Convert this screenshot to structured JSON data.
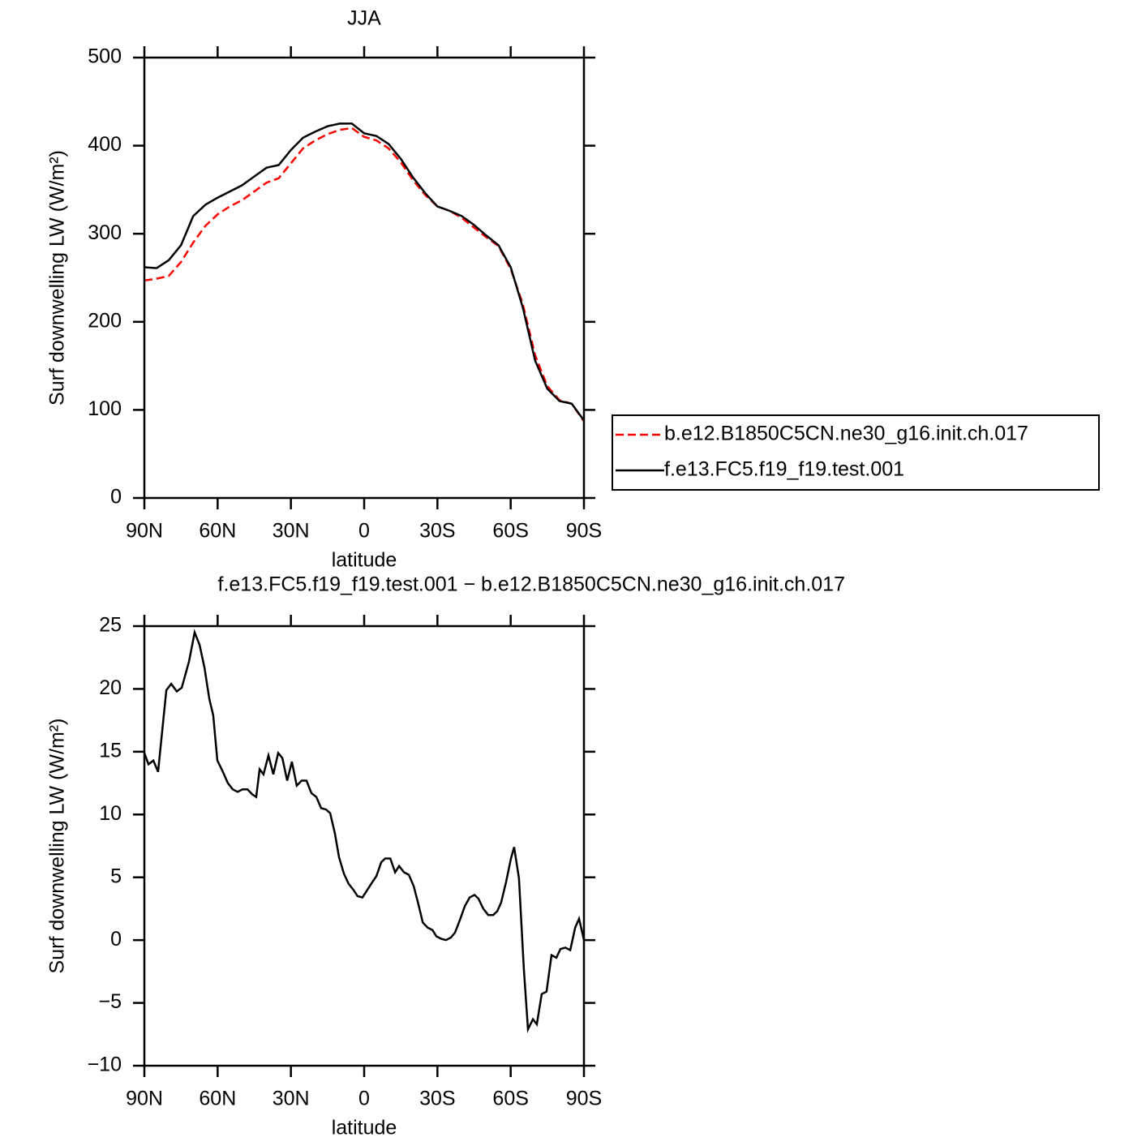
{
  "chart_data": [
    {
      "type": "line",
      "title": "JJA",
      "xlabel": "latitude",
      "ylabel": "Surf downwelling LW (W/m²)",
      "x": [
        90,
        85,
        80,
        75,
        70,
        65,
        60,
        55,
        50,
        45,
        40,
        35,
        30,
        25,
        20,
        15,
        10,
        5,
        0,
        -5,
        -10,
        -15,
        -20,
        -25,
        -30,
        -35,
        -40,
        -45,
        -50,
        -55,
        -60,
        -65,
        -70,
        -75,
        -80,
        -85,
        -90
      ],
      "series": [
        {
          "name": "b.e12.B1850C5CN.ne30_g16.init.ch.017",
          "color": "#ff0000",
          "line_style": "dashed",
          "values": [
            247,
            249,
            252,
            268,
            290,
            309,
            322,
            331,
            338,
            348,
            358,
            363,
            380,
            397,
            406,
            413,
            418,
            420,
            410,
            406,
            397,
            381,
            361,
            344,
            331,
            326,
            318,
            307,
            296,
            286,
            260,
            220,
            162,
            127,
            111,
            107,
            87
          ]
        },
        {
          "name": "f.e13.FC5.f19_f19.test.001",
          "color": "#000000",
          "line_style": "solid",
          "values": [
            262,
            261,
            270,
            287,
            320,
            333,
            341,
            348,
            355,
            365,
            375,
            378,
            395,
            409,
            416,
            422,
            425,
            425,
            414,
            411,
            402,
            385,
            364,
            346,
            331,
            326,
            320,
            310,
            298,
            287,
            262,
            216,
            156,
            124,
            110,
            107,
            88
          ]
        }
      ],
      "xlim": [
        90,
        -90
      ],
      "xticks": [
        {
          "value": 90,
          "label": "90N"
        },
        {
          "value": 60,
          "label": "60N"
        },
        {
          "value": 30,
          "label": "30N"
        },
        0,
        {
          "value": -30,
          "label": "30S"
        },
        {
          "value": -60,
          "label": "60S"
        },
        {
          "value": -90,
          "label": "90S"
        }
      ],
      "ylim": [
        0,
        500
      ],
      "yticks": [
        0,
        100,
        200,
        300,
        400,
        500
      ],
      "legend": "right"
    },
    {
      "type": "line",
      "title": "f.e13.FC5.f19_f19.test.001 − b.e12.B1850C5CN.ne30_g16.init.ch.017",
      "xlabel": "latitude",
      "ylabel": "Surf downwelling LW (W/m²)",
      "x": [
        90,
        88.3,
        86.3,
        84.4,
        81,
        79,
        76.7,
        74.7,
        71.7,
        69.4,
        67.4,
        65.4,
        63.4,
        61.8,
        60.1,
        58.1,
        55.8,
        53.8,
        51.8,
        49.8,
        47.8,
        45.8,
        44.2,
        42.8,
        41.2,
        39.2,
        37.2,
        35.2,
        33.5,
        31.5,
        29.6,
        27.6,
        25.6,
        23.6,
        21.6,
        19.6,
        17.6,
        15.6,
        13.9,
        12,
        10.3,
        8.3,
        6.4,
        4.4,
        2.7,
        0.7,
        -1.3,
        -3.3,
        -5,
        -7,
        -8.6,
        -10.7,
        -12.7,
        -14.3,
        -16.3,
        -18.3,
        -20.3,
        -22.3,
        -24,
        -26,
        -28,
        -29.6,
        -31.6,
        -33.5,
        -35.5,
        -37.2,
        -39.2,
        -41.2,
        -43.2,
        -45.2,
        -46.8,
        -48.8,
        -50.8,
        -52.8,
        -54.5,
        -56.1,
        -58.1,
        -60.1,
        -61.4,
        -63.4,
        -65.4,
        -67.1,
        -69.1,
        -70.7,
        -72.7,
        -74.7,
        -76.7,
        -78.7,
        -80.4,
        -82.4,
        -84.4,
        -86.4,
        -88,
        -90
      ],
      "series": [
        {
          "color": "#000000",
          "line_style": "solid",
          "values": [
            14.9,
            14.0,
            14.3,
            13.4,
            19.9,
            20.4,
            19.8,
            20.1,
            22.2,
            24.5,
            23.5,
            21.7,
            19.2,
            17.9,
            14.3,
            13.5,
            12.5,
            12.0,
            11.8,
            12.0,
            12.0,
            11.6,
            11.4,
            13.6,
            13.2,
            14.7,
            13.2,
            14.9,
            14.5,
            12.7,
            14.2,
            12.3,
            12.7,
            12.7,
            11.7,
            11.4,
            10.5,
            10.4,
            10.1,
            8.5,
            6.6,
            5.3,
            4.5,
            4.0,
            3.5,
            3.4,
            4.0,
            4.6,
            5.1,
            6.2,
            6.5,
            6.5,
            5.4,
            5.9,
            5.4,
            5.2,
            4.3,
            2.8,
            1.4,
            1.0,
            0.8,
            0.3,
            0.1,
            0.0,
            0.2,
            0.6,
            1.6,
            2.7,
            3.4,
            3.6,
            3.3,
            2.5,
            2.0,
            2.0,
            2.3,
            3.0,
            4.6,
            6.5,
            7.4,
            4.9,
            -2.3,
            -7.1,
            -6.3,
            -6.7,
            -4.3,
            -4.1,
            -1.2,
            -1.4,
            -0.7,
            -0.6,
            -0.8,
            1.0,
            1.7,
            0.0
          ]
        }
      ],
      "xlim": [
        90,
        -90
      ],
      "xticks": [
        {
          "value": 90,
          "label": "90N"
        },
        {
          "value": 60,
          "label": "60N"
        },
        {
          "value": 30,
          "label": "30N"
        },
        0,
        {
          "value": -30,
          "label": "30S"
        },
        {
          "value": -60,
          "label": "60S"
        },
        {
          "value": -90,
          "label": "90S"
        }
      ],
      "ylim": [
        -10,
        25
      ],
      "yticks": [
        {
          "value": -10,
          "label": "−10"
        },
        {
          "value": -5,
          "label": "−5"
        },
        0,
        5,
        10,
        15,
        20,
        25
      ]
    }
  ]
}
